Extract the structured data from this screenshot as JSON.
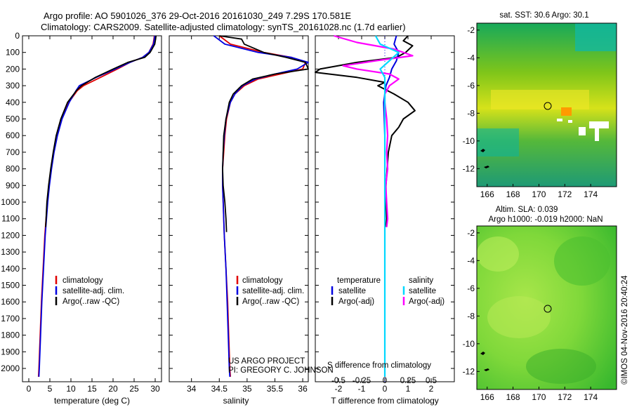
{
  "header": {
    "line1": "Argo profile: AO 5901026_376 29-Oct-2016 20161030_249 7.29S 170.581E",
    "line2": "Climatology: CARS2009. Satellite-adjusted climatology: synTS_20161028.nc (1.7d earlier)"
  },
  "colors": {
    "climatology": "#e00000",
    "satellite": "#0000e0",
    "argo": "#000000",
    "sat_salinity": "#00d8ff",
    "argo_salinity": "#ff00ff"
  },
  "chart_data": [
    {
      "type": "line",
      "id": "temperature",
      "xlabel": "temperature (deg C)",
      "ylabel": "",
      "xlim": [
        -1.5,
        31.5
      ],
      "ylim": [
        2080,
        0
      ],
      "xticks": [
        0,
        5,
        10,
        15,
        20,
        25,
        30
      ],
      "yticks": [
        0,
        100,
        200,
        300,
        400,
        500,
        600,
        700,
        800,
        900,
        1000,
        1100,
        1200,
        1300,
        1400,
        1500,
        1600,
        1700,
        1800,
        1900,
        2000
      ],
      "legend": [
        "climatology",
        "satellite-adj. clim.",
        "Argo(..raw -QC)"
      ],
      "depth": [
        0,
        20,
        50,
        100,
        130,
        160,
        200,
        250,
        300,
        330,
        400,
        500,
        600,
        700,
        800,
        900,
        1000,
        1200,
        1400,
        1600,
        1800,
        2000,
        2050
      ],
      "series": [
        {
          "name": "climatology",
          "values": [
            29.8,
            29.7,
            29.5,
            28.5,
            27,
            24,
            21,
            17,
            13,
            11.5,
            9.5,
            7.8,
            6.7,
            5.9,
            5.3,
            4.8,
            4.4,
            3.8,
            3.4,
            3.0,
            2.7,
            2.4,
            2.3
          ]
        },
        {
          "name": "satellite-adj. clim.",
          "values": [
            29.9,
            29.8,
            29.6,
            28.5,
            27,
            24,
            20.5,
            16,
            12,
            11.2,
            9.6,
            7.9,
            6.8,
            6.0,
            5.4,
            4.9,
            4.5,
            3.9,
            3.5,
            3.1,
            2.8,
            2.5,
            2.4
          ]
        },
        {
          "name": "Argo(..raw -QC)",
          "depth": [
            0,
            20,
            50,
            100,
            130,
            160,
            200,
            250,
            300,
            330,
            400,
            500,
            600,
            700,
            800,
            900,
            1000,
            1100,
            1150
          ],
          "values": [
            30.2,
            30.1,
            29.9,
            28.8,
            27.5,
            23.5,
            20,
            15.8,
            12.5,
            11.3,
            9.2,
            7.6,
            6.5,
            5.8,
            5.2,
            4.7,
            4.3,
            4.1,
            4.0
          ]
        }
      ]
    },
    {
      "type": "line",
      "id": "salinity",
      "xlabel": "salinity",
      "ylabel": "",
      "xlim": [
        33.6,
        36.1
      ],
      "ylim": [
        2080,
        0
      ],
      "xticks": [
        34,
        34.5,
        35,
        35.5,
        36
      ],
      "legend": [
        "climatology",
        "satellite-adj. clim.",
        "Argo(..raw -QC)"
      ],
      "depth": [
        0,
        50,
        100,
        130,
        160,
        200,
        230,
        260,
        300,
        350,
        400,
        500,
        600,
        700,
        800,
        900,
        1000,
        1200,
        1400,
        1600,
        1800,
        2000,
        2050
      ],
      "series": [
        {
          "name": "climatology",
          "values": [
            34.5,
            34.7,
            35.3,
            35.8,
            36.05,
            36.0,
            35.6,
            35.2,
            34.95,
            34.78,
            34.7,
            34.63,
            34.6,
            34.58,
            34.56,
            34.56,
            34.57,
            34.59,
            34.62,
            34.65,
            34.67,
            34.69,
            34.7
          ]
        },
        {
          "name": "satellite-adj. clim.",
          "values": [
            34.4,
            34.6,
            35.2,
            35.8,
            36.1,
            35.9,
            35.5,
            35.15,
            34.92,
            34.78,
            34.7,
            34.62,
            34.59,
            34.57,
            34.56,
            34.56,
            34.57,
            34.59,
            34.62,
            34.64,
            34.66,
            34.68,
            34.69
          ]
        },
        {
          "name": "Argo(..raw -QC)",
          "depth": [
            0,
            20,
            50,
            100,
            130,
            160,
            200,
            230,
            260,
            300,
            350,
            400,
            500,
            600,
            700,
            800,
            900,
            1000,
            1100,
            1180
          ],
          "values": [
            34.5,
            34.9,
            34.95,
            35.3,
            35.7,
            36.05,
            36.1,
            35.5,
            35.1,
            34.9,
            34.75,
            34.68,
            34.62,
            34.58,
            34.57,
            34.56,
            34.57,
            34.6,
            34.62,
            34.63
          ]
        }
      ]
    },
    {
      "type": "line",
      "id": "difference",
      "xlabel": "T difference from climatology",
      "xlabel2": "S difference from climatology",
      "xlim": [
        -3,
        3
      ],
      "ylim": [
        2080,
        0
      ],
      "xticks": [
        -2,
        -1,
        0,
        1,
        2
      ],
      "xticks_s": [
        -0.5,
        -0.25,
        0,
        0.25,
        0.5
      ],
      "legend_headers": [
        "temperature",
        "salinity"
      ],
      "legend": [
        "satellite",
        "Argo(-adj)",
        "satellite",
        "Argo(-adj)"
      ],
      "series": [
        {
          "name": "T satellite",
          "depth": [
            0,
            50,
            100,
            150,
            200,
            250,
            300,
            400,
            600,
            800,
            1000,
            1500,
            2000,
            2050
          ],
          "values": [
            0.5,
            0.4,
            0.6,
            0.5,
            0.3,
            0.2,
            0.05,
            -0.05,
            0.0,
            0.0,
            0.0,
            0.0,
            0.0,
            0.0
          ]
        },
        {
          "name": "T Argo(-adj)",
          "depth": [
            0,
            30,
            60,
            100,
            130,
            160,
            200,
            220,
            250,
            280,
            300,
            350,
            400,
            450,
            500,
            550,
            600,
            700,
            800,
            900,
            1000,
            1100,
            1150
          ],
          "values": [
            1.0,
            0.8,
            1.2,
            0.9,
            0.5,
            -1.2,
            -2.8,
            -3.0,
            -1.2,
            0.0,
            -0.3,
            0.4,
            1.0,
            1.3,
            0.8,
            0.6,
            0.3,
            0.15,
            0.1,
            0.05,
            0.05,
            0.08,
            0.05
          ]
        },
        {
          "name": "S satellite",
          "depth": [
            0,
            50,
            100,
            150,
            200,
            250,
            300,
            400,
            600,
            800,
            1000,
            1500,
            2000,
            2050
          ],
          "values": [
            -0.1,
            -0.05,
            0.15,
            0.05,
            -0.05,
            0.0,
            0.0,
            0.0,
            0.0,
            0.0,
            0.0,
            0.0,
            0.0,
            0.0
          ]
        },
        {
          "name": "S Argo(-adj)",
          "depth": [
            0,
            40,
            80,
            120,
            150,
            180,
            200,
            230,
            260,
            300,
            350,
            400,
            500,
            600,
            700,
            800,
            900,
            1000,
            1100,
            1150
          ],
          "values": [
            -0.55,
            -0.3,
            0.1,
            0.3,
            -0.1,
            -0.45,
            -0.3,
            0.05,
            0.15,
            0.05,
            0.0,
            0.0,
            0.02,
            0.03,
            0.02,
            0.03,
            0.01,
            0.02,
            0.03,
            0.02
          ]
        }
      ]
    }
  ],
  "sst_map": {
    "title": "sat. SST: 30.6 Argo: 30.1",
    "xticks": [
      166,
      168,
      170,
      172,
      174
    ],
    "yticks": [
      -2,
      -4,
      -6,
      -8,
      -10,
      -12
    ],
    "marker_lon": 170.58,
    "marker_lat": -7.29
  },
  "sla_map": {
    "title_line1": "Altim. SLA: 0.039",
    "title_line2": "Argo h1000: -0.019 h2000: NaN",
    "xticks": [
      166,
      168,
      170,
      172,
      174
    ],
    "yticks": [
      -2,
      -4,
      -6,
      -8,
      -10,
      -12
    ],
    "marker_lon": 170.58,
    "marker_lat": -7.29
  },
  "credits": {
    "project": "US ARGO PROJECT",
    "pi": "PI: GREGORY C. JOHNSON",
    "imos": "©IMOS 04-Nov-2016 20:40:24"
  }
}
